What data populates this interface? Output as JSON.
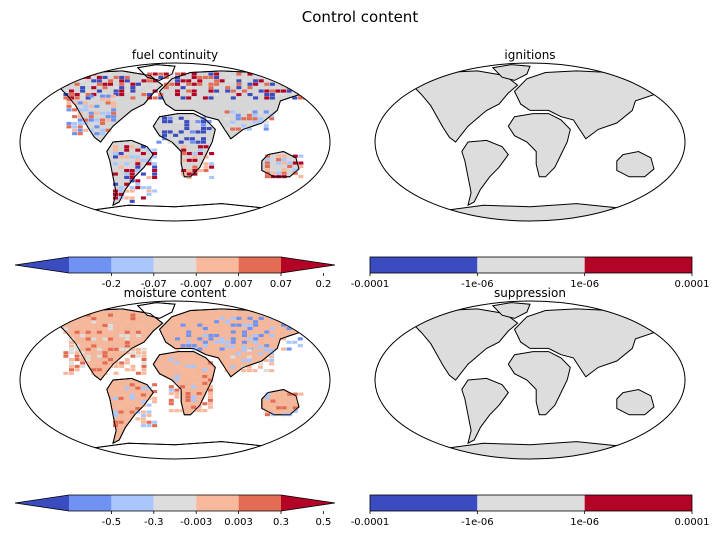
{
  "figure": {
    "title": "Control content"
  },
  "panels": [
    {
      "title": "fuel continuity",
      "style": "fuel"
    },
    {
      "title": "ignitions",
      "style": "grey"
    },
    {
      "title": "moisture content",
      "style": "moist"
    },
    {
      "title": "suppression",
      "style": "grey"
    }
  ],
  "colorbars": [
    {
      "extend": "both",
      "colors": [
        "#3b4cc0",
        "#6f92f3",
        "#aac7fd",
        "#dddddd",
        "#f7b89c",
        "#e36c55",
        "#b40426"
      ],
      "ticks": [
        "-0.2",
        "-0.07",
        "-0.007",
        "0.007",
        "0.07",
        "0.2"
      ]
    },
    {
      "extend": "neither",
      "colors": [
        "#3b4cc0",
        "#dddddd",
        "#b40426"
      ],
      "ticks": [
        "-0.0001",
        "-1e-06",
        "1e-06",
        "0.0001"
      ]
    },
    {
      "extend": "both",
      "colors": [
        "#3b4cc0",
        "#6f92f3",
        "#aac7fd",
        "#dddddd",
        "#f7b89c",
        "#e36c55",
        "#b40426"
      ],
      "ticks": [
        "-0.5",
        "-0.3",
        "-0.003",
        "0.003",
        "0.3",
        "0.5"
      ]
    },
    {
      "extend": "neither",
      "colors": [
        "#3b4cc0",
        "#dddddd",
        "#b40426"
      ],
      "ticks": [
        "-0.0001",
        "-1e-06",
        "1e-06",
        "0.0001"
      ]
    }
  ]
}
